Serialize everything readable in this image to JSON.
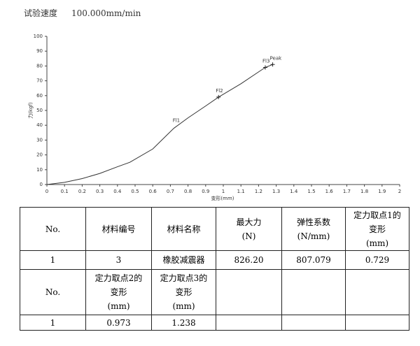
{
  "header": {
    "label": "试验速度",
    "value": "100.000mm/min"
  },
  "chart_data": {
    "type": "line",
    "xlabel": "变形(mm)",
    "ylabel": "力(kgf)",
    "xlim": [
      0,
      2
    ],
    "ylim": [
      0,
      100
    ],
    "xticks": [
      0,
      0.1,
      0.2,
      0.3,
      0.4,
      0.5,
      0.6,
      0.7,
      0.8,
      0.9,
      1,
      1.1,
      1.2,
      1.3,
      1.4,
      1.5,
      1.6,
      1.7,
      1.8,
      1.9,
      2
    ],
    "yticks": [
      0,
      10,
      20,
      30,
      40,
      50,
      60,
      70,
      80,
      90,
      100
    ],
    "series": [
      {
        "color": "#333333",
        "x": [
          0,
          0.1,
          0.2,
          0.3,
          0.4,
          0.47,
          0.6,
          0.72,
          0.8,
          0.9,
          0.973,
          1.1,
          1.2,
          1.238,
          1.28
        ],
        "y": [
          0,
          1.5,
          4,
          7.5,
          12,
          15,
          24,
          38,
          45,
          53,
          59,
          68,
          76,
          79,
          81
        ]
      }
    ],
    "annotations": [
      {
        "text": "Fl1",
        "x": 0.729,
        "y": 39,
        "marker": false
      },
      {
        "text": "Fl2",
        "x": 0.973,
        "y": 59,
        "marker": true
      },
      {
        "text": "Fl3",
        "x": 1.238,
        "y": 79,
        "marker": true
      },
      {
        "text": "Peak",
        "x": 1.28,
        "y": 81,
        "marker": true
      }
    ]
  },
  "table": {
    "rows": [
      [
        "No.",
        "材料编号",
        "材料名称",
        "最大力\n(N)",
        "弹性系数\n(N/mm)",
        "定力取点1的\n变形\n(mm)"
      ],
      [
        "1",
        "3",
        "橡胶减震器",
        "826.20",
        "807.079",
        "0.729"
      ],
      [
        "No.",
        "定力取点2的\n变形\n(mm)",
        "定力取点3的\n变形\n(mm)"
      ],
      [
        "1",
        "0.973",
        "1.238"
      ]
    ]
  }
}
